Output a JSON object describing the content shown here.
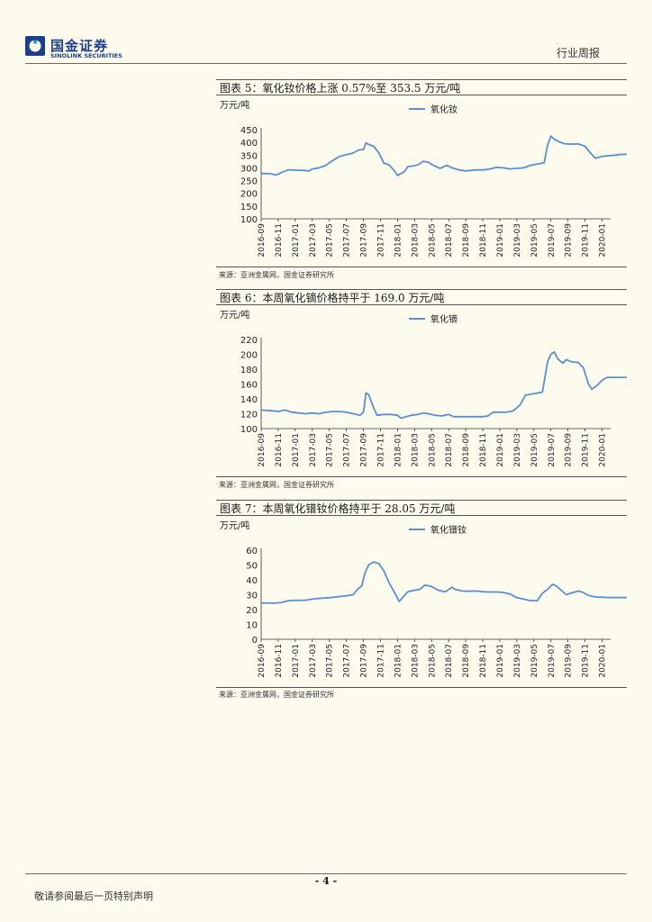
{
  "header": {
    "logo_cn": "国金证券",
    "logo_en": "SINOLINK SECURITIES",
    "report_type": "行业周报"
  },
  "figures": [
    {
      "title": "图表 5：氧化钕价格上涨 0.57%至 353.5 万元/吨",
      "source": "来源：亚洲金属网，国金证券研究所"
    },
    {
      "title": "图表 6：本周氧化镝价格持平于 169.0 万元/吨",
      "source": "来源：亚洲金属网，国金证券研究所"
    },
    {
      "title": "图表 7：本周氧化镨钕价格持平于 28.05 万元/吨",
      "source": "来源：亚洲金属网，国金证券研究所"
    }
  ],
  "chart_data": [
    {
      "type": "line",
      "unit_label": "万元/吨",
      "legend": "氧化钕",
      "color": "#5b8fd0",
      "ylim": [
        100,
        450
      ],
      "yticks": [
        100,
        150,
        200,
        250,
        300,
        350,
        400,
        450
      ],
      "xticks": [
        "2016-09",
        "2016-11",
        "2017-01",
        "2017-03",
        "2017-05",
        "2017-07",
        "2017-09",
        "2017-11",
        "2018-01",
        "2018-03",
        "2018-05",
        "2018-07",
        "2018-09",
        "2018-11",
        "2019-01",
        "2019-03",
        "2019-05",
        "2019-07",
        "2019-09",
        "2019-11",
        "2020-01"
      ],
      "points": [
        [
          0,
          278
        ],
        [
          0.5,
          277
        ],
        [
          0.9,
          272
        ],
        [
          1.3,
          285
        ],
        [
          1.6,
          292
        ],
        [
          2.0,
          291
        ],
        [
          2.5,
          290
        ],
        [
          2.8,
          288
        ],
        [
          3.0,
          295
        ],
        [
          3.4,
          300
        ],
        [
          3.8,
          310
        ],
        [
          4.1,
          325
        ],
        [
          4.6,
          345
        ],
        [
          5.0,
          352
        ],
        [
          5.4,
          358
        ],
        [
          5.7,
          370
        ],
        [
          6.0,
          372
        ],
        [
          6.15,
          398
        ],
        [
          6.3,
          392
        ],
        [
          6.6,
          385
        ],
        [
          6.9,
          360
        ],
        [
          7.2,
          318
        ],
        [
          7.5,
          312
        ],
        [
          7.8,
          290
        ],
        [
          8.0,
          270
        ],
        [
          8.4,
          285
        ],
        [
          8.6,
          305
        ],
        [
          9.0,
          308
        ],
        [
          9.3,
          315
        ],
        [
          9.5,
          326
        ],
        [
          9.8,
          322
        ],
        [
          10.1,
          310
        ],
        [
          10.5,
          298
        ],
        [
          10.9,
          310
        ],
        [
          11.2,
          300
        ],
        [
          11.6,
          292
        ],
        [
          12.0,
          288
        ],
        [
          12.6,
          292
        ],
        [
          13.0,
          292
        ],
        [
          13.4,
          295
        ],
        [
          13.8,
          302
        ],
        [
          14.2,
          300
        ],
        [
          14.6,
          296
        ],
        [
          15.0,
          298
        ],
        [
          15.4,
          300
        ],
        [
          15.8,
          310
        ],
        [
          16.2,
          315
        ],
        [
          16.6,
          320
        ],
        [
          16.8,
          388
        ],
        [
          17.0,
          425
        ],
        [
          17.2,
          412
        ],
        [
          17.5,
          402
        ],
        [
          17.8,
          395
        ],
        [
          18.2,
          393
        ],
        [
          18.6,
          394
        ],
        [
          19.0,
          385
        ],
        [
          19.3,
          360
        ],
        [
          19.6,
          338
        ],
        [
          20.0,
          345
        ],
        [
          20.4,
          348
        ],
        [
          20.8,
          350
        ],
        [
          21.0,
          352
        ],
        [
          21.5,
          353.5
        ]
      ],
      "x_end": 21.5
    },
    {
      "type": "line",
      "unit_label": "万元/吨",
      "legend": "氧化镝",
      "color": "#5b8fd0",
      "ylim": [
        100,
        220
      ],
      "yticks": [
        100,
        120,
        140,
        160,
        180,
        200,
        220
      ],
      "xticks": [
        "2016-09",
        "2016-11",
        "2017-01",
        "2017-03",
        "2017-05",
        "2017-07",
        "2017-09",
        "2017-11",
        "2018-01",
        "2018-03",
        "2018-05",
        "2018-07",
        "2018-09",
        "2018-11",
        "2019-01",
        "2019-03",
        "2019-05",
        "2019-07",
        "2019-09",
        "2019-11",
        "2020-01"
      ],
      "points": [
        [
          0,
          125
        ],
        [
          0.6,
          124
        ],
        [
          1.0,
          123
        ],
        [
          1.4,
          125
        ],
        [
          1.8,
          122
        ],
        [
          2.2,
          121
        ],
        [
          2.6,
          120
        ],
        [
          3.0,
          121
        ],
        [
          3.4,
          120
        ],
        [
          3.8,
          122
        ],
        [
          4.2,
          123
        ],
        [
          4.6,
          123
        ],
        [
          5.0,
          122
        ],
        [
          5.4,
          120
        ],
        [
          5.8,
          118
        ],
        [
          6.0,
          122
        ],
        [
          6.15,
          148
        ],
        [
          6.3,
          146
        ],
        [
          6.6,
          128
        ],
        [
          6.8,
          118
        ],
        [
          7.2,
          119
        ],
        [
          7.6,
          119
        ],
        [
          8.0,
          118
        ],
        [
          8.2,
          114
        ],
        [
          8.5,
          116
        ],
        [
          8.8,
          118
        ],
        [
          9.2,
          119
        ],
        [
          9.5,
          121
        ],
        [
          9.8,
          120
        ],
        [
          10.2,
          118
        ],
        [
          10.6,
          117
        ],
        [
          11.0,
          119
        ],
        [
          11.3,
          116
        ],
        [
          11.6,
          116
        ],
        [
          12.0,
          116
        ],
        [
          12.6,
          116
        ],
        [
          13.0,
          116
        ],
        [
          13.3,
          117
        ],
        [
          13.6,
          122
        ],
        [
          14.0,
          122
        ],
        [
          14.4,
          122
        ],
        [
          14.8,
          124
        ],
        [
          15.2,
          132
        ],
        [
          15.5,
          145
        ],
        [
          16.0,
          147
        ],
        [
          16.5,
          149
        ],
        [
          16.8,
          190
        ],
        [
          17.0,
          200
        ],
        [
          17.2,
          203
        ],
        [
          17.4,
          194
        ],
        [
          17.7,
          188
        ],
        [
          17.9,
          193
        ],
        [
          18.2,
          190
        ],
        [
          18.6,
          189
        ],
        [
          18.9,
          182
        ],
        [
          19.2,
          160
        ],
        [
          19.4,
          153
        ],
        [
          19.7,
          158
        ],
        [
          20.0,
          165
        ],
        [
          20.3,
          169
        ],
        [
          20.6,
          169
        ],
        [
          21.5,
          169
        ]
      ],
      "x_end": 21.5
    },
    {
      "type": "line",
      "unit_label": "万元/吨",
      "legend": "氧化镨钕",
      "color": "#5b8fd0",
      "ylim": [
        0,
        60
      ],
      "yticks": [
        0,
        10,
        20,
        30,
        40,
        50,
        60
      ],
      "xticks": [
        "2016-09",
        "2016-11",
        "2017-01",
        "2017-03",
        "2017-05",
        "2017-07",
        "2017-09",
        "2017-11",
        "2018-01",
        "2018-03",
        "2018-05",
        "2018-07",
        "2018-09",
        "2018-11",
        "2019-01",
        "2019-03",
        "2019-05",
        "2019-07",
        "2019-09",
        "2019-11",
        "2020-01"
      ],
      "points": [
        [
          0,
          24.5
        ],
        [
          0.8,
          24.3
        ],
        [
          1.2,
          24.8
        ],
        [
          1.6,
          26
        ],
        [
          2.0,
          26.2
        ],
        [
          2.6,
          26.3
        ],
        [
          3.0,
          27
        ],
        [
          3.4,
          27.5
        ],
        [
          4.0,
          28
        ],
        [
          4.6,
          28.8
        ],
        [
          5.0,
          29.3
        ],
        [
          5.4,
          30
        ],
        [
          5.6,
          33
        ],
        [
          5.9,
          36
        ],
        [
          6.1,
          45
        ],
        [
          6.3,
          50
        ],
        [
          6.6,
          52
        ],
        [
          6.9,
          51
        ],
        [
          7.2,
          46
        ],
        [
          7.5,
          38
        ],
        [
          7.8,
          32
        ],
        [
          8.1,
          25.5
        ],
        [
          8.3,
          28
        ],
        [
          8.6,
          32
        ],
        [
          9.0,
          33
        ],
        [
          9.3,
          33.5
        ],
        [
          9.6,
          36.5
        ],
        [
          10.0,
          35.5
        ],
        [
          10.4,
          33
        ],
        [
          10.8,
          32
        ],
        [
          11.2,
          35
        ],
        [
          11.4,
          33.5
        ],
        [
          11.8,
          32.5
        ],
        [
          12.2,
          32.3
        ],
        [
          12.6,
          32.5
        ],
        [
          13.0,
          32
        ],
        [
          13.4,
          31.8
        ],
        [
          13.8,
          31.8
        ],
        [
          14.2,
          31.5
        ],
        [
          14.6,
          30.5
        ],
        [
          15.0,
          28
        ],
        [
          15.4,
          27
        ],
        [
          15.8,
          26
        ],
        [
          16.2,
          26
        ],
        [
          16.5,
          31
        ],
        [
          16.8,
          33.5
        ],
        [
          17.1,
          37
        ],
        [
          17.3,
          36
        ],
        [
          17.6,
          33
        ],
        [
          17.9,
          30
        ],
        [
          18.3,
          31.5
        ],
        [
          18.6,
          32.5
        ],
        [
          18.9,
          31.5
        ],
        [
          19.2,
          29.5
        ],
        [
          19.6,
          28.5
        ],
        [
          20.0,
          28.3
        ],
        [
          20.4,
          28.1
        ],
        [
          21.5,
          28.05
        ]
      ],
      "x_end": 21.5
    }
  ],
  "footer": {
    "page_number": "- 4 -",
    "disclaimer": "敬请参阅最后一页特别声明"
  }
}
